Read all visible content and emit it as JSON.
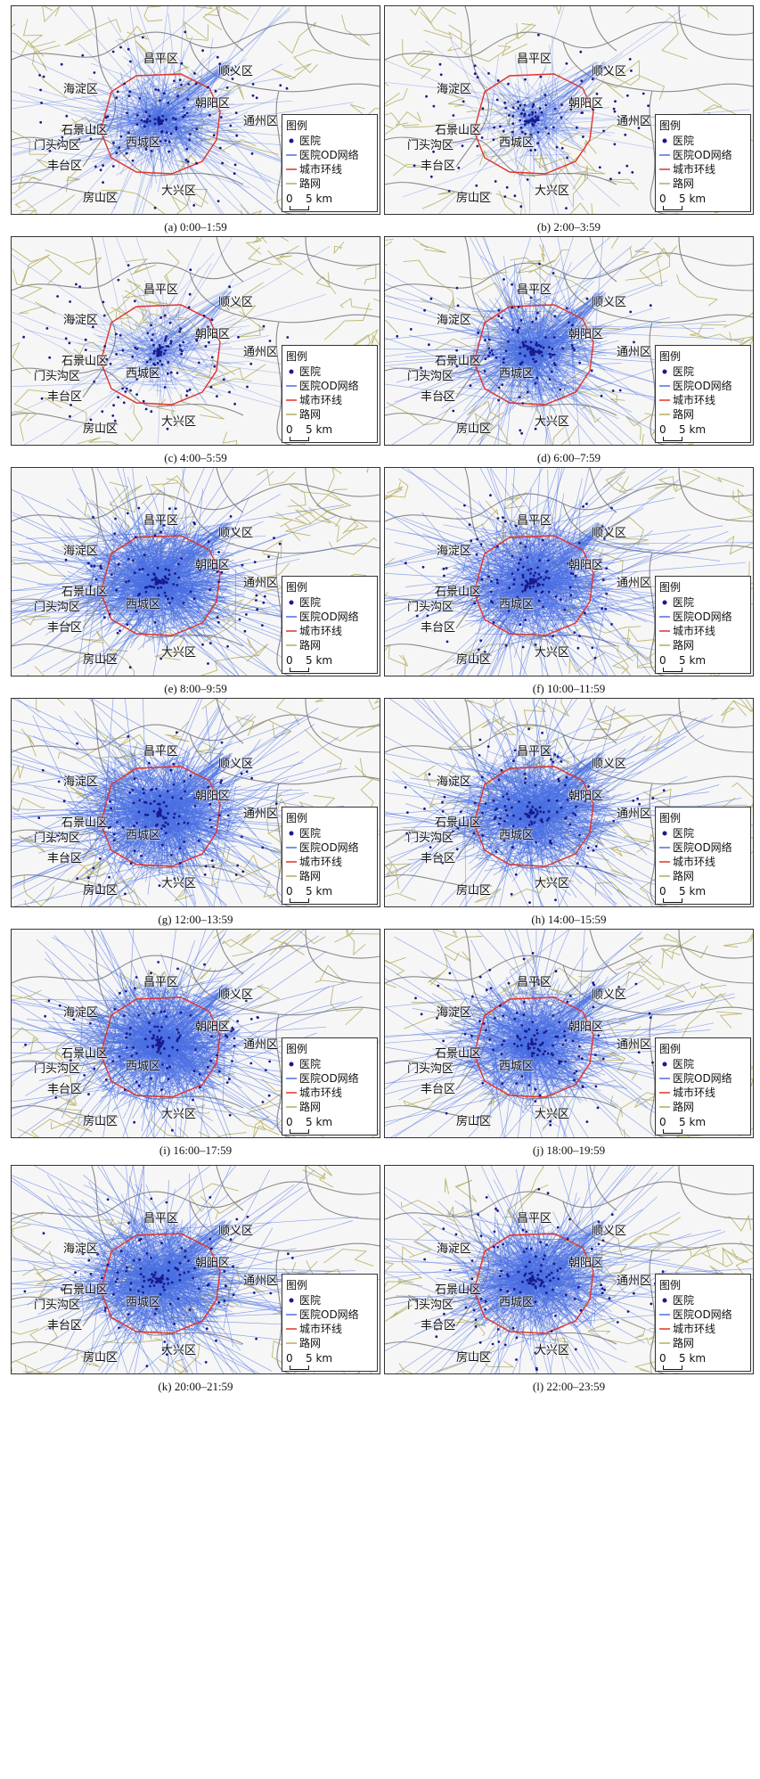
{
  "legend": {
    "title": "图例",
    "hospital": "医院",
    "od_network": "医院OD网络",
    "ring_road": "城市环线",
    "road_network": "路网",
    "scale_zero": "0",
    "scale_five": "5 km"
  },
  "districts": {
    "changping": "昌平区",
    "shunyi": "顺义区",
    "haidian": "海淀区",
    "tongzhou": "通州区",
    "chaoyang": "朝阳区",
    "shijingshan": "石景山区",
    "mentougou": "门头沟区",
    "xicheng": "西城区",
    "fengtai": "丰台区",
    "fangshan": "房山区",
    "daxing": "大兴区"
  },
  "colors": {
    "hospital": "#1a1a8c",
    "od_network": "#4a6fe3",
    "ring_road": "#e0332b",
    "road_network": "#b3ad5e",
    "district_boundary": "#8a8a8a"
  },
  "panels": [
    {
      "caption": "(a) 0:00–1:59",
      "density": 0.38
    },
    {
      "caption": "(b) 2:00–3:59",
      "density": 0.12
    },
    {
      "caption": "(c) 4:00–5:59",
      "density": 0.14
    },
    {
      "caption": "(d) 6:00–7:59",
      "density": 0.6
    },
    {
      "caption": "(e) 8:00–9:59",
      "density": 0.85
    },
    {
      "caption": "(f) 10:00–11:59",
      "density": 0.8
    },
    {
      "caption": "(g) 12:00–13:59",
      "density": 0.9
    },
    {
      "caption": "(h) 14:00–15:59",
      "density": 0.82
    },
    {
      "caption": "(i) 16:00–17:59",
      "density": 0.9
    },
    {
      "caption": "(j) 18:00–19:59",
      "density": 0.75
    },
    {
      "caption": "(k) 20:00–21:59",
      "density": 0.85
    },
    {
      "caption": "(l) 22:00–23:59",
      "density": 0.72
    }
  ]
}
